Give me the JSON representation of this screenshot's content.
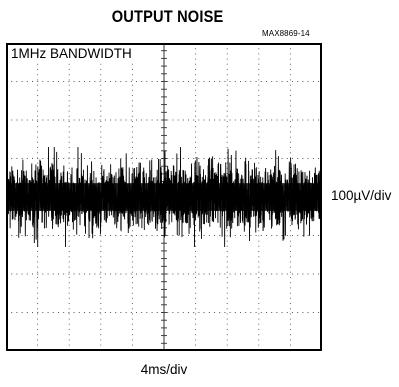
{
  "chart_data": {
    "type": "line",
    "title": "OUTPUT NOISE",
    "figure_id": "MAX8869-14",
    "annotation": "1MHz BANDWIDTH",
    "ylabel": "100µV/div",
    "xlabel": "4ms/div",
    "grid": true,
    "divisions": {
      "x": 10,
      "y": 8
    },
    "x_range_ms": [
      0,
      40
    ],
    "y_range_uV": [
      -400,
      400
    ],
    "series": [
      {
        "noise_rms_uV": 40,
        "noise_peak_to_peak_uV": 260,
        "baseline_uV": 0
      }
    ]
  }
}
